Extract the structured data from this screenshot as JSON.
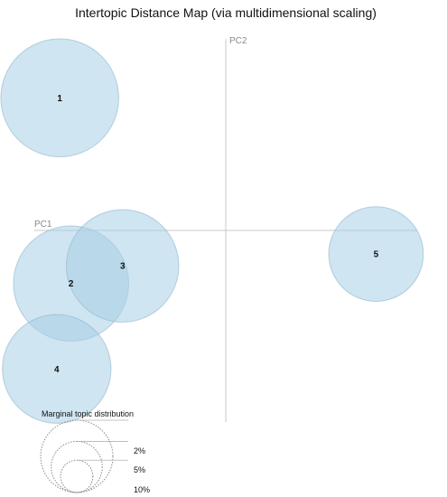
{
  "chart_data": {
    "type": "scatter",
    "title": "Intertopic Distance Map (via multidimensional scaling)",
    "xlabel": "PC1",
    "ylabel": "PC2",
    "grid": false,
    "legend_position": "bottom-left",
    "colors": {
      "bubble_fill": "#a8cfe5",
      "bubble_stroke": "#8fb4c9",
      "axis": "#c8c8c8",
      "axis_label": "#8a8a8a",
      "legend_circle": "#8a8a8a"
    },
    "xlim": [
      -1,
      1
    ],
    "ylim": [
      -1,
      1
    ],
    "topics": [
      {
        "id": 1,
        "label": "1",
        "x": -0.867,
        "y": 0.692,
        "size": 13.2
      },
      {
        "id": 2,
        "label": "2",
        "x": -0.808,
        "y": -0.277,
        "size": 12.6
      },
      {
        "id": 3,
        "label": "3",
        "x": -0.539,
        "y": -0.185,
        "size": 12.0
      },
      {
        "id": 4,
        "label": "4",
        "x": -0.883,
        "y": -0.723,
        "size": 11.2
      },
      {
        "id": 5,
        "label": "5",
        "x": 0.785,
        "y": -0.123,
        "size": 8.5
      }
    ],
    "legend": {
      "title": "Marginal topic distribution",
      "entries": [
        {
          "label": "2%",
          "value": 2
        },
        {
          "label": "5%",
          "value": 5
        },
        {
          "label": "10%",
          "value": 10
        }
      ]
    }
  }
}
